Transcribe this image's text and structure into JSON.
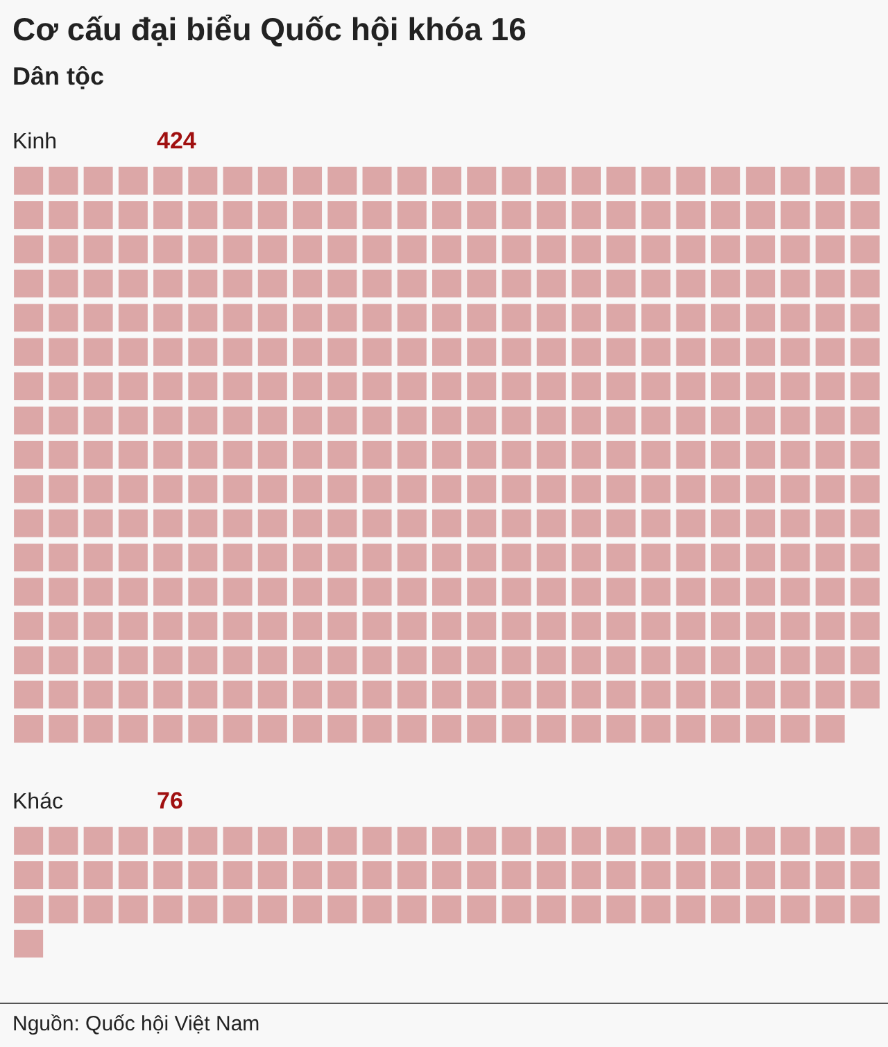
{
  "chart_data": {
    "type": "other",
    "title": "Cơ cấu đại biểu Quốc hội khóa 16",
    "subtitle": "Dân tộc",
    "categories": [
      "Kinh",
      "Khác"
    ],
    "values": [
      424,
      76
    ],
    "colors": [
      "#dca7a7",
      "#dca7a7"
    ],
    "data_labels": true,
    "annotations": [
      "Nguồn: Quốc hội Việt Nam"
    ]
  }
}
